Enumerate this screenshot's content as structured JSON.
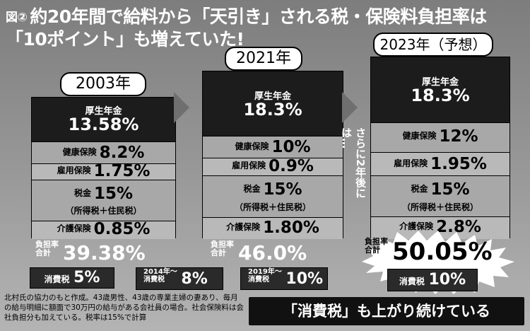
{
  "title": {
    "fig": "図②",
    "line1": "約20年間で給料から「天引き」される税・保険料負担率は",
    "line2": "「10ポイント」も増えていた!"
  },
  "years": {
    "y2003": "2003年",
    "y2021": "2021年",
    "y2023": "2023年（予想）"
  },
  "labels": {
    "pension": "厚生年金",
    "health": "健康保険",
    "employment": "雇用保険",
    "tax": "税金",
    "tax_sub": "（所得税＋住民税）",
    "care": "介護保険",
    "total_a": "負担率",
    "total_b": "合計",
    "ctax": "消費税"
  },
  "cols": {
    "c2003": {
      "pension": "13.58%",
      "health": "8.2%",
      "employment": "1.75%",
      "tax": "15%",
      "care": "0.85%",
      "total": "39.38%"
    },
    "c2021": {
      "pension": "18.3%",
      "health": "10%",
      "employment": "0.9%",
      "tax": "15%",
      "care": "1.80%",
      "total": "46.0%"
    },
    "c2023": {
      "pension": "18.3%",
      "health": "12%",
      "employment": "1.95%",
      "tax": "15%",
      "care": "2.8%",
      "total": "50.05%"
    }
  },
  "side_note": "さらに2年後には…",
  "ctax_boxes": {
    "b1": {
      "value": "5%"
    },
    "b2": {
      "prefix": "2014年〜",
      "value": "8%"
    },
    "b3": {
      "prefix": "2019年〜",
      "value": "10%"
    },
    "b4": {
      "value": "10%"
    }
  },
  "footnote": "北村氏の協力のもと作成。43歳男性、43歳の専業主婦の妻あり、毎月の給与明細に額面で30万円の給与がある会社員の場合。社会保険料は会社負担分も加えている。税率は15%で計算",
  "banner": "「消費税」も上がり続けている"
}
